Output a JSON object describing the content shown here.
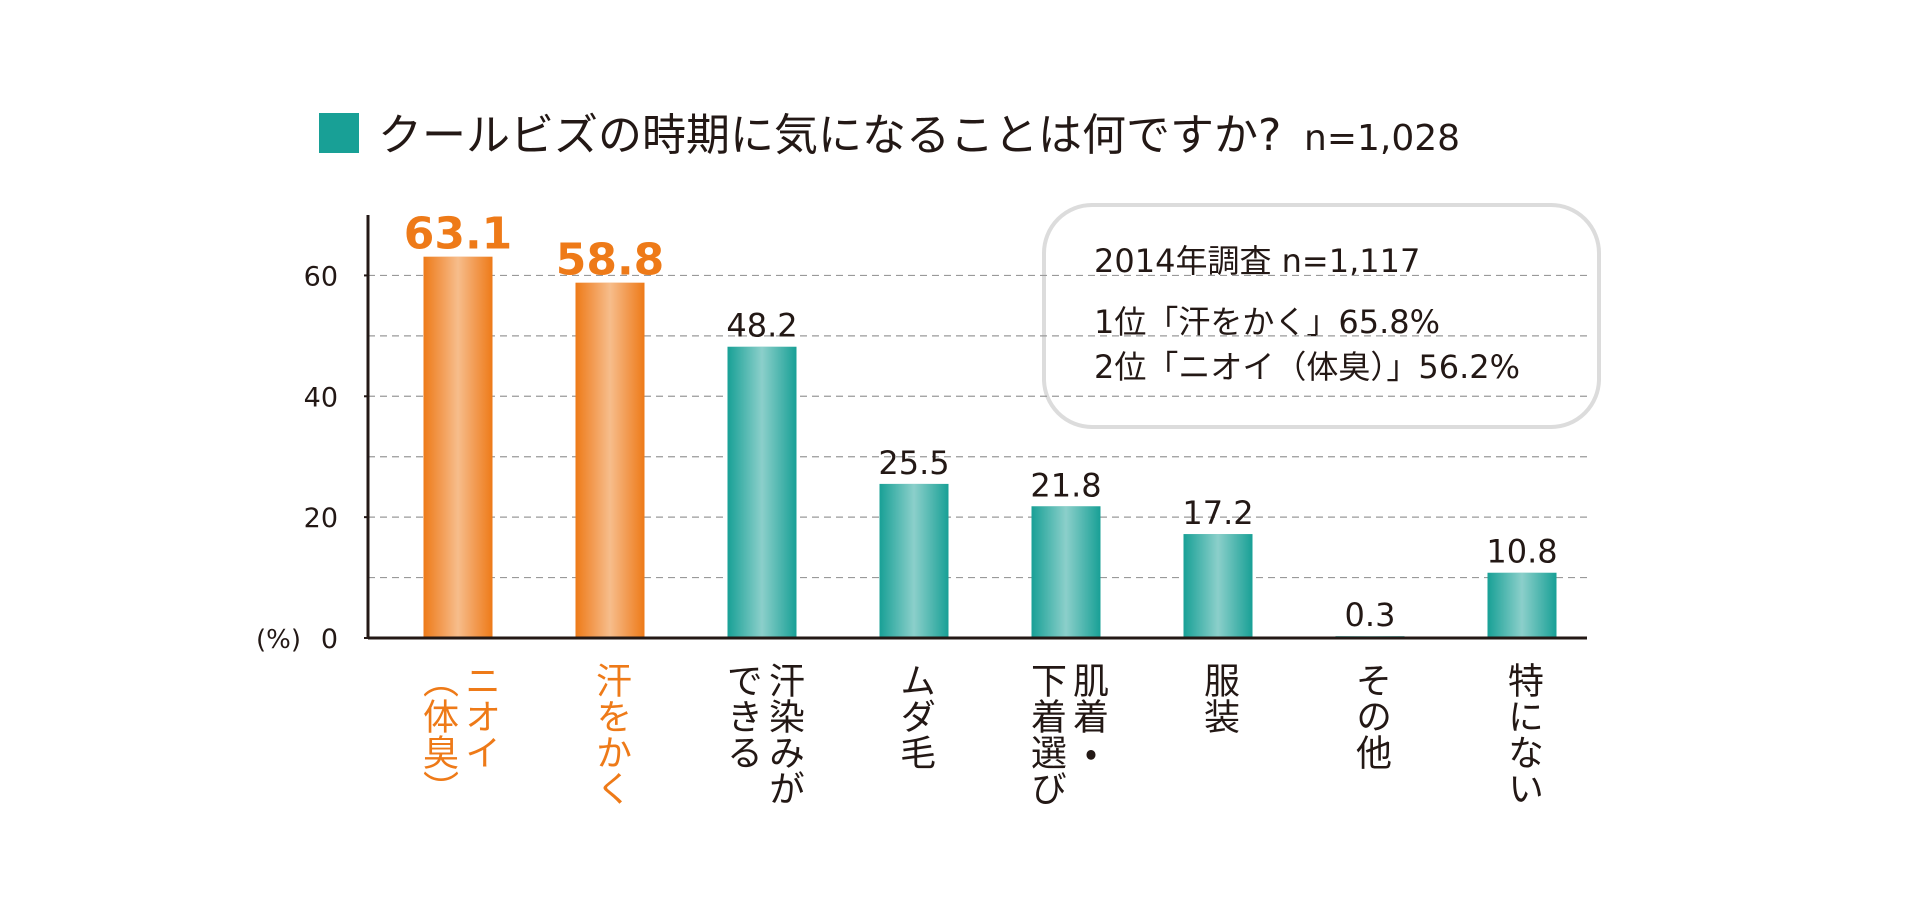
{
  "chart_data": {
    "type": "bar",
    "title": "クールビズの時期に気になることは何ですか?",
    "subtitle": "n=1,028",
    "y_unit": "(%)",
    "categories": [
      "ニオイ\n（体臭）",
      "汗をかく",
      "汗染みが\nできる",
      "ムダ毛",
      "肌着・\n下着選び",
      "服装",
      "その他",
      "特にない"
    ],
    "values": [
      63.1,
      58.8,
      48.2,
      25.5,
      21.8,
      17.2,
      0.3,
      10.8
    ],
    "colors": [
      "#ee7a18",
      "#ee7a18",
      "#18a096",
      "#18a096",
      "#18a096",
      "#18a096",
      "#18a096",
      "#18a096"
    ],
    "label_colors": [
      "#ee7a18",
      "#ee7a18",
      "#231815",
      "#231815",
      "#231815",
      "#231815",
      "#231815",
      "#231815"
    ],
    "ylim": [
      0,
      70
    ],
    "yticks": [
      0,
      20,
      40,
      60
    ],
    "grid_lines": [
      10,
      20,
      30,
      40,
      50,
      60
    ],
    "grid": true,
    "annotation": [
      "2014年調査 n=1,117",
      "1位「汗をかく」65.8%",
      "2位「ニオイ（体臭）」56.2%"
    ]
  }
}
